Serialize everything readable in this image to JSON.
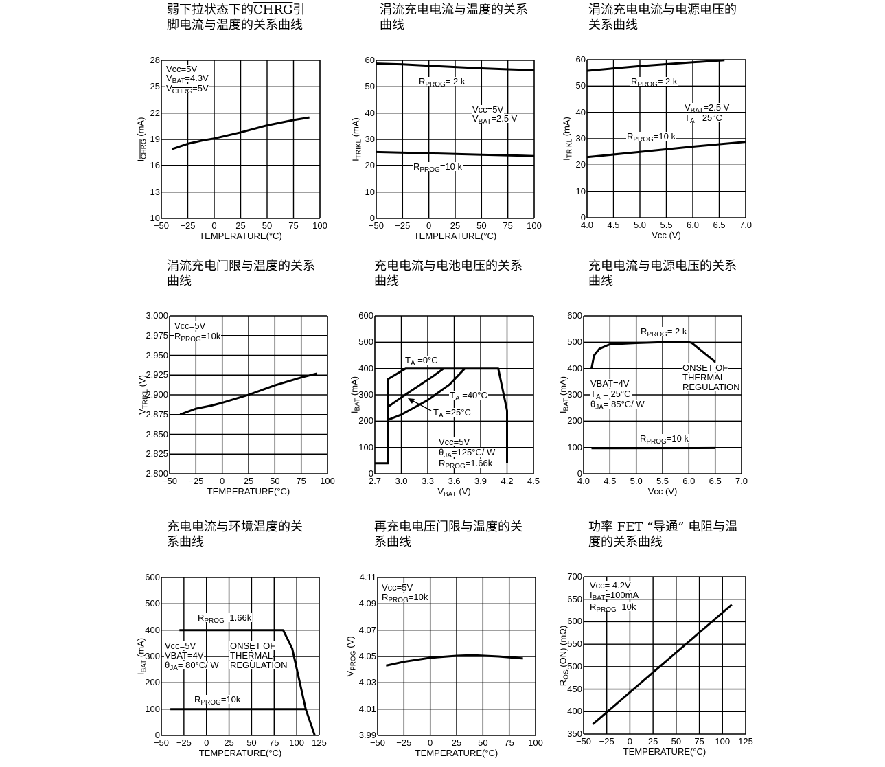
{
  "chart_data": [
    {
      "type": "line",
      "title": "弱下拉状态下的~{CHRG}引\n脚电流与温度的关系曲线",
      "xlabel": "TEMPERATURE(°C)",
      "ylabel": "I_{~{CHRG}}  (mA)",
      "xlim": [
        -50,
        100
      ],
      "ylim": [
        10,
        28
      ],
      "xticks": [
        "-50",
        "-25",
        "0",
        "25",
        "50",
        "75",
        "100"
      ],
      "yticks": [
        "10",
        "13",
        "16",
        "19",
        "22",
        "25",
        "28"
      ],
      "grid": true,
      "series": [
        {
          "points": [
            [
              -40,
              17.9
            ],
            [
              -25,
              18.5
            ],
            [
              -10,
              18.9
            ],
            [
              0,
              19.1
            ],
            [
              25,
              19.8
            ],
            [
              50,
              20.6
            ],
            [
              75,
              21.2
            ],
            [
              90,
              21.5
            ]
          ]
        }
      ],
      "annotations": [
        "Vcc=5V",
        "V_{BAT}=4.3V",
        "V_{~{CHRG}}=5V"
      ]
    },
    {
      "type": "line",
      "title": "涓流充电电流与温度的关系\n曲线",
      "xlabel": "TEMPERATURE(°C)",
      "ylabel": "I_{TRIKL} (mA)",
      "xlim": [
        -50,
        100
      ],
      "ylim": [
        0,
        60
      ],
      "xticks": [
        "-50",
        "-25",
        "0",
        "25",
        "50",
        "75",
        "100"
      ],
      "yticks": [
        "0",
        "10",
        "20",
        "30",
        "40",
        "50",
        "60"
      ],
      "grid": true,
      "series": [
        {
          "name": "R_{PROG}= 2 k",
          "points": [
            [
              -50,
              58.8
            ],
            [
              -25,
              58.5
            ],
            [
              0,
              58
            ],
            [
              25,
              57.5
            ],
            [
              50,
              57
            ],
            [
              75,
              56.6
            ],
            [
              100,
              56.3
            ]
          ]
        },
        {
          "name": "R_{PROG}=10 k",
          "points": [
            [
              -50,
              25.2
            ],
            [
              0,
              24.7
            ],
            [
              50,
              24.2
            ],
            [
              100,
              23.7
            ]
          ]
        }
      ],
      "annotations": [
        "R_{PROG}= 2 k",
        "Vcc=5V",
        "V_{BAT}=2.5 V",
        "R_{PROG}=10 k"
      ]
    },
    {
      "type": "line",
      "title": "涓流充电电流与电源电压的\n关系曲线",
      "xlabel": "Vcc (V)",
      "ylabel": "I_{TRIKL} (mA)",
      "xlim": [
        4.0,
        7.0
      ],
      "ylim": [
        0,
        60
      ],
      "xticks": [
        "4.0",
        "4.5",
        "5.0",
        "5.5",
        "6.0",
        "6.5",
        "7.0"
      ],
      "yticks": [
        "0",
        "10",
        "20",
        "30",
        "40",
        "50",
        "60"
      ],
      "grid": true,
      "series": [
        {
          "name": "R_{PROG}= 2 k",
          "points": [
            [
              4.0,
              55.8
            ],
            [
              5.0,
              57.6
            ],
            [
              6.0,
              59
            ],
            [
              6.6,
              59.8
            ]
          ]
        },
        {
          "name": "R_{PROG}=10 k",
          "points": [
            [
              4.0,
              23
            ],
            [
              5.0,
              25
            ],
            [
              6.0,
              27
            ],
            [
              7.0,
              28.8
            ]
          ]
        }
      ],
      "annotations": [
        "R_{PROG}= 2 k",
        "V_{BAT}=2.5 V",
        "T_{A} =25°C",
        "R_{PROG}=10 k"
      ]
    },
    {
      "type": "line",
      "title": "涓流充电门限与温度的关系\n曲线",
      "xlabel": "TEMPERATURE(°C)",
      "ylabel": "V_{TRIKL} (V)",
      "xlim": [
        -50,
        100
      ],
      "ylim": [
        2.8,
        3.0
      ],
      "xticks": [
        "-50",
        "-25",
        "0",
        "25",
        "50",
        "75",
        "100"
      ],
      "yticks": [
        "2.800",
        "2.825",
        "2.850",
        "2.875",
        "2.900",
        "2.925",
        "2.950",
        "2.975",
        "3.000"
      ],
      "grid": true,
      "series": [
        {
          "points": [
            [
              -40,
              2.875
            ],
            [
              -25,
              2.8825
            ],
            [
              -10,
              2.8865
            ],
            [
              0,
              2.89
            ],
            [
              15,
              2.896
            ],
            [
              25,
              2.9
            ],
            [
              50,
              2.912
            ],
            [
              75,
              2.922
            ],
            [
              90,
              2.927
            ]
          ]
        }
      ],
      "annotations": [
        "Vcc=5V",
        "R_{PROG}=10k"
      ]
    },
    {
      "type": "line",
      "title": "充电电流与电池电压的关系\n曲线",
      "xlabel": "V_{BAT} (V)",
      "ylabel": "I_{BAT} (mA)",
      "xlim": [
        2.7,
        4.5
      ],
      "ylim": [
        0,
        600
      ],
      "xticks": [
        "2.7",
        "3.0",
        "3.3",
        "3.6",
        "3.9",
        "4.2",
        "4.5"
      ],
      "yticks": [
        "0",
        "100",
        "200",
        "300",
        "400",
        "500",
        "600"
      ],
      "grid": true,
      "series": [
        {
          "name": "T_{A} =0°C",
          "points": [
            [
              2.7,
              40
            ],
            [
              2.85,
              40
            ],
            [
              2.85,
              360
            ],
            [
              3.05,
              400
            ],
            [
              4.1,
              400
            ],
            [
              4.2,
              240
            ],
            [
              4.2,
              40
            ]
          ]
        },
        {
          "name": "T_{A} =25°C",
          "points": [
            [
              2.85,
              255
            ],
            [
              3.0,
              290
            ],
            [
              3.2,
              335
            ],
            [
              3.35,
              368
            ],
            [
              3.48,
              400
            ]
          ]
        },
        {
          "name": "T_{A} =40°C",
          "points": [
            [
              2.85,
              205
            ],
            [
              3.0,
              225
            ],
            [
              3.3,
              280
            ],
            [
              3.55,
              340
            ],
            [
              3.72,
              400
            ]
          ]
        }
      ],
      "annotations": [
        "T_{A} =0°C",
        "T_{A} =40°C",
        "T_{A} =25°C",
        "Vcc=5V",
        "θ_{JA}=125°C/ W",
        "R_{PROG}=1.66k"
      ]
    },
    {
      "type": "line",
      "title": "充电电流与电源电压的关系\n曲线",
      "xlabel": "Vcc (V)",
      "ylabel": "I_{BAT} (mA)",
      "xlim": [
        4.0,
        7.0
      ],
      "ylim": [
        0,
        600
      ],
      "xticks": [
        "4.0",
        "4.5",
        "5.0",
        "5.5",
        "6.0",
        "6.5",
        "7.0"
      ],
      "yticks": [
        "0",
        "100",
        "200",
        "300",
        "400",
        "500",
        "600"
      ],
      "grid": true,
      "series": [
        {
          "name": "R_{PROG}= 2 k",
          "points": [
            [
              4.15,
              400
            ],
            [
              4.2,
              450
            ],
            [
              4.3,
              475
            ],
            [
              4.5,
              492
            ],
            [
              5.0,
              497
            ],
            [
              5.5,
              500
            ],
            [
              6.0,
              500
            ],
            [
              6.05,
              498
            ],
            [
              6.5,
              425
            ]
          ]
        },
        {
          "name": "R_{PROG}=10 k",
          "points": [
            [
              4.15,
              97
            ],
            [
              6.5,
              98
            ]
          ]
        }
      ],
      "annotations": [
        "R_{PROG}= 2 k",
        "ONSET OF",
        "THERMAL",
        "REGULATION",
        "VBAT=4V",
        "T_{A} = 25°C",
        "θ_{JA}= 85°C/ W",
        "R_{PROG}=10 k"
      ]
    },
    {
      "type": "line",
      "title": "充电电流与环境温度的关\n系曲线",
      "xlabel": "TEMPERATURE(°C)",
      "ylabel": "I_{BAT} (mA)",
      "xlim": [
        -50,
        125
      ],
      "ylim": [
        0,
        600
      ],
      "xticks": [
        "-50",
        "-25",
        "0",
        "25",
        "50",
        "75",
        "100",
        "125"
      ],
      "yticks": [
        "0",
        "100",
        "200",
        "300",
        "400",
        "500",
        "600"
      ],
      "grid": true,
      "series": [
        {
          "name": "R_{PROG}=1.66k",
          "points": [
            [
              -30,
              400
            ],
            [
              85,
              400
            ],
            [
              95,
              330
            ],
            [
              110,
              100
            ],
            [
              120,
              0
            ]
          ]
        },
        {
          "name": "R_{PROG}=10k",
          "points": [
            [
              -40,
              100
            ],
            [
              110,
              100
            ]
          ]
        }
      ],
      "annotations": [
        "R_{PROG}=1.66k",
        "Vcc=5V",
        "VBAT=4V",
        "θ_{JA}= 80°C/ W",
        "ONSET OF",
        "THERMAL",
        "REGULATION",
        "R_{PROG}=10k"
      ]
    },
    {
      "type": "line",
      "title": "再充电电压门限与温度的关\n系曲线",
      "xlabel": "TEMPERATURE(°C)",
      "ylabel": "V_{PROG}  (V)",
      "xlim": [
        -50,
        100
      ],
      "ylim": [
        3.99,
        4.11
      ],
      "xticks": [
        "-50",
        "-25",
        "0",
        "25",
        "50",
        "75",
        "100"
      ],
      "yticks": [
        "3.99",
        "4.01",
        "4.03",
        "4.05",
        "4.07",
        "4.09",
        "4.11"
      ],
      "grid": true,
      "series": [
        {
          "points": [
            [
              -42,
              4.043
            ],
            [
              -25,
              4.046
            ],
            [
              0,
              4.049
            ],
            [
              25,
              4.0505
            ],
            [
              40,
              4.051
            ],
            [
              65,
              4.05
            ],
            [
              88,
              4.0485
            ]
          ]
        }
      ],
      "annotations": [
        "Vcc=5V",
        "R_{PROG}=10k"
      ]
    },
    {
      "type": "line",
      "title": "功率 FET “导通” 电阻与温\n度的关系曲线",
      "xlabel": "TEMPERATURE(°C)",
      "ylabel": "R_{OS} (ON) (mΩ)",
      "xlim": [
        -50,
        125
      ],
      "ylim": [
        350,
        700
      ],
      "xticks": [
        "-50",
        "-25",
        "0",
        "25",
        "50",
        "75",
        "100",
        "125"
      ],
      "yticks": [
        "350",
        "400",
        "450",
        "500",
        "550",
        "600",
        "650",
        "700"
      ],
      "grid": true,
      "series": [
        {
          "points": [
            [
              -40,
              372
            ],
            [
              110,
              638
            ]
          ]
        }
      ],
      "annotations": [
        "Vcc= 4.2V",
        "I_{BAT}=100mA",
        "R_{PROG}=10k"
      ]
    }
  ]
}
